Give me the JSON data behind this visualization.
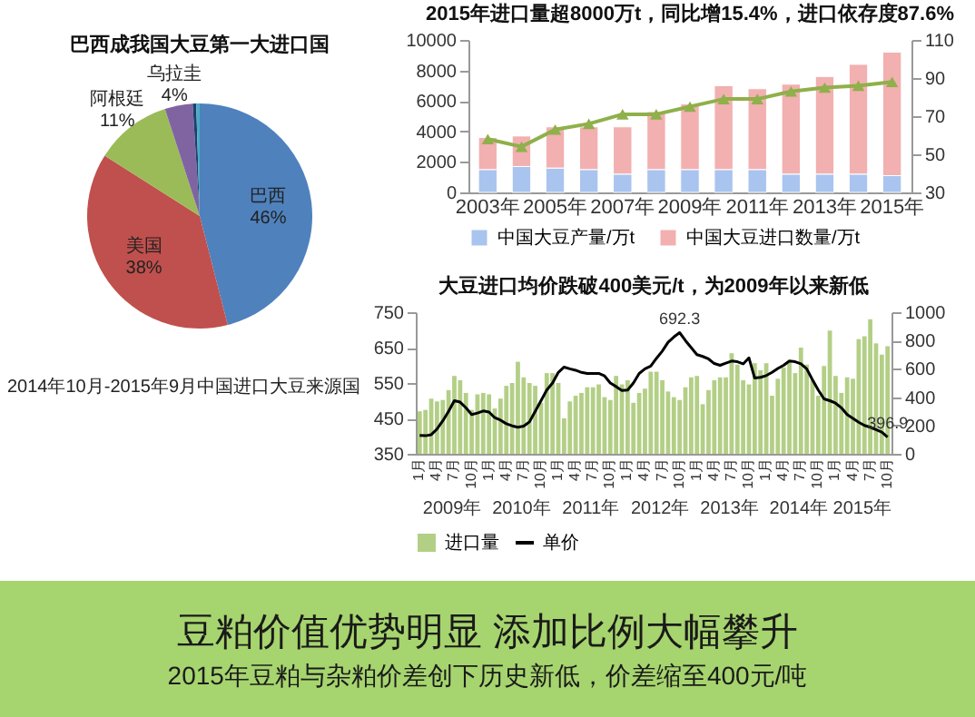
{
  "chart_data": [
    {
      "type": "pie",
      "title": "巴西成我国大豆第一大进口国",
      "categories": [
        "巴西",
        "美国",
        "阿根廷",
        "乌拉圭",
        null,
        null
      ],
      "values": [
        46,
        38,
        11,
        4,
        0.5,
        0.5
      ],
      "colors": [
        "#4f81bd",
        "#c0504d",
        "#9bbb59",
        "#8064a2",
        "#1f3f6e",
        "#4bacc6"
      ],
      "value_labels": [
        "46%",
        "38%",
        "11%",
        "4%",
        null,
        null
      ],
      "annotations": [
        "2014年10月-2015年9月中国进口大豆来源国"
      ]
    },
    {
      "type": "bar",
      "title": "2015年进口量超8000万t，同比增15.4%，进口依存度87.6%",
      "categories": [
        "2003年",
        null,
        "2005年",
        null,
        "2007年",
        null,
        "2009年",
        null,
        "2011年",
        null,
        "2013年",
        null,
        "2015年"
      ],
      "stacked": true,
      "legend": "bottom",
      "marker": "triangle",
      "series": [
        {
          "name": "中国大豆产量/万t",
          "color": "#a9c4ee",
          "values": [
            1500,
            1700,
            1600,
            1500,
            1200,
            1500,
            1500,
            1500,
            1500,
            1200,
            1200,
            1200,
            1100
          ]
        },
        {
          "name": "中国大豆进口数量/万t",
          "color": "#f2b0b0",
          "values": [
            2100,
            2000,
            2700,
            2800,
            3100,
            3800,
            4300,
            5500,
            5300,
            5900,
            6400,
            7200,
            8100
          ]
        },
        {
          "type": "line",
          "axis": "y2",
          "color": "#8fb04a",
          "values": [
            58,
            54,
            63,
            66,
            71,
            71,
            75,
            79,
            79,
            83,
            85,
            86,
            88
          ]
        }
      ],
      "ylim": [
        0,
        10000
      ],
      "yticks": [
        0,
        2000,
        4000,
        6000,
        8000,
        10000
      ],
      "y2lim": [
        30,
        110
      ],
      "y2ticks": [
        30,
        50,
        70,
        90,
        110
      ]
    },
    {
      "type": "bar",
      "title": "大豆进口均价跌破400美元/t，为2009年以来新低",
      "legend": "bottom",
      "categories": [
        "1月",
        null,
        null,
        "4月",
        null,
        null,
        "7月",
        null,
        null,
        "10月",
        null,
        null,
        "1月",
        null,
        null,
        "4月",
        null,
        null,
        "7月",
        null,
        null,
        "10月",
        null,
        null,
        "1月",
        null,
        null,
        "4月",
        null,
        null,
        "7月",
        null,
        null,
        "10月",
        null,
        null,
        "1月",
        null,
        null,
        "4月",
        null,
        null,
        "7月",
        null,
        null,
        "10月",
        null,
        null,
        "1月",
        null,
        null,
        "4月",
        null,
        null,
        "7月",
        null,
        null,
        "10月",
        null,
        null,
        "1月",
        null,
        null,
        "4月",
        null,
        null,
        "7月",
        null,
        null,
        "10月",
        null,
        null,
        "1月",
        null,
        null,
        "4月",
        null,
        null,
        "7月",
        null,
        null,
        "10月"
      ],
      "series": [
        {
          "name": "进口量",
          "color": "#b3cf86",
          "axis": "y2",
          "values": [
            300,
            310,
            390,
            370,
            380,
            450,
            550,
            520,
            430,
            310,
            420,
            430,
            420,
            320,
            390,
            480,
            500,
            650,
            540,
            500,
            480,
            360,
            570,
            570,
            500,
            250,
            370,
            410,
            430,
            470,
            470,
            490,
            400,
            380,
            550,
            490,
            520,
            360,
            430,
            460,
            580,
            580,
            520,
            440,
            400,
            380,
            470,
            540,
            550,
            350,
            450,
            520,
            540,
            540,
            710,
            630,
            520,
            490,
            640,
            590,
            640,
            410,
            530,
            610,
            650,
            570,
            750,
            630,
            520,
            410,
            620,
            870,
            550,
            430,
            540,
            530,
            810,
            830,
            950,
            780,
            700,
            760
          ]
        },
        {
          "name": "单价",
          "type": "line",
          "color": "#000000",
          "values": [
            402,
            401,
            404,
            420,
            443,
            470,
            500,
            496,
            480,
            461,
            465,
            471,
            468,
            452,
            445,
            435,
            429,
            425,
            428,
            440,
            470,
            500,
            530,
            550,
            580,
            595,
            590,
            586,
            580,
            577,
            577,
            577,
            570,
            550,
            540,
            529,
            530,
            550,
            577,
            590,
            598,
            620,
            640,
            665,
            680,
            692.3,
            670,
            650,
            630,
            625,
            618,
            605,
            600,
            606,
            612,
            610,
            604,
            621,
            564,
            566,
            571,
            580,
            591,
            600,
            612,
            610,
            604,
            590,
            559,
            530,
            505,
            500,
            493,
            480,
            461,
            450,
            439,
            430,
            425,
            418,
            411,
            396.9
          ],
          "value_labels": [
            null,
            null,
            null,
            null,
            null,
            null,
            null,
            null,
            null,
            null,
            null,
            null,
            null,
            null,
            null,
            null,
            null,
            null,
            null,
            null,
            null,
            null,
            null,
            null,
            null,
            null,
            null,
            null,
            null,
            null,
            null,
            null,
            null,
            null,
            null,
            null,
            null,
            null,
            null,
            null,
            null,
            null,
            null,
            null,
            null,
            "692.3",
            null,
            null,
            null,
            null,
            null,
            null,
            null,
            null,
            null,
            null,
            null,
            null,
            null,
            null,
            null,
            null,
            null,
            null,
            null,
            null,
            null,
            null,
            null,
            null,
            null,
            null,
            null,
            null,
            null,
            null,
            null,
            null,
            null,
            null,
            null,
            "396.9"
          ]
        }
      ],
      "ylim": [
        350,
        750
      ],
      "yticks": [
        350,
        450,
        550,
        650,
        750
      ],
      "y2lim": [
        0,
        1000
      ],
      "y2ticks": [
        0,
        200,
        400,
        600,
        800,
        1000
      ],
      "annotations": [
        "2009年",
        "2010年",
        "2011年",
        "2012年",
        "2013年",
        "2014年",
        "2015年"
      ]
    },
    {
      "type": "other",
      "title": "豆粕价值优势明显 添加比例大幅攀升",
      "subtitle": "2015年豆粕与杂粕价差创下历史新低，价差缩至400元/吨"
    }
  ]
}
